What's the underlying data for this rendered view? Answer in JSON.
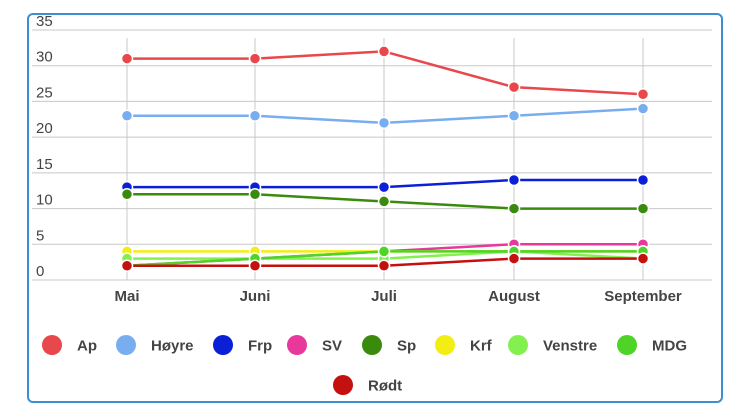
{
  "chart_data": {
    "type": "line",
    "title": "",
    "xlabel": "",
    "ylabel": "",
    "categories": [
      "Mai",
      "Juni",
      "Juli",
      "August",
      "September"
    ],
    "ylim": [
      0,
      35
    ],
    "yticks": [
      0,
      5,
      10,
      15,
      20,
      25,
      30,
      35
    ],
    "grid": true,
    "legend_position": "bottom",
    "series": [
      {
        "name": "Ap",
        "color": "#e8474c",
        "values": [
          31,
          31,
          32,
          27,
          26
        ]
      },
      {
        "name": "Høyre",
        "color": "#78aef0",
        "values": [
          23,
          23,
          22,
          23,
          24
        ]
      },
      {
        "name": "Frp",
        "color": "#0a1fd6",
        "values": [
          13,
          13,
          13,
          14,
          14
        ]
      },
      {
        "name": "SV",
        "color": "#e8389c",
        "values": [
          2,
          3,
          4,
          5,
          5
        ]
      },
      {
        "name": "Sp",
        "color": "#3a8a0e",
        "values": [
          12,
          12,
          11,
          10,
          10
        ]
      },
      {
        "name": "Krf",
        "color": "#f2ee14",
        "values": [
          4,
          4,
          4,
          4,
          4
        ]
      },
      {
        "name": "Venstre",
        "color": "#84f050",
        "values": [
          3,
          3,
          3,
          4,
          3
        ]
      },
      {
        "name": "MDG",
        "color": "#4ed426",
        "values": [
          2,
          3,
          4,
          4,
          4
        ]
      },
      {
        "name": "Rødt",
        "color": "#c4100e",
        "values": [
          2,
          2,
          2,
          3,
          3
        ]
      }
    ]
  }
}
